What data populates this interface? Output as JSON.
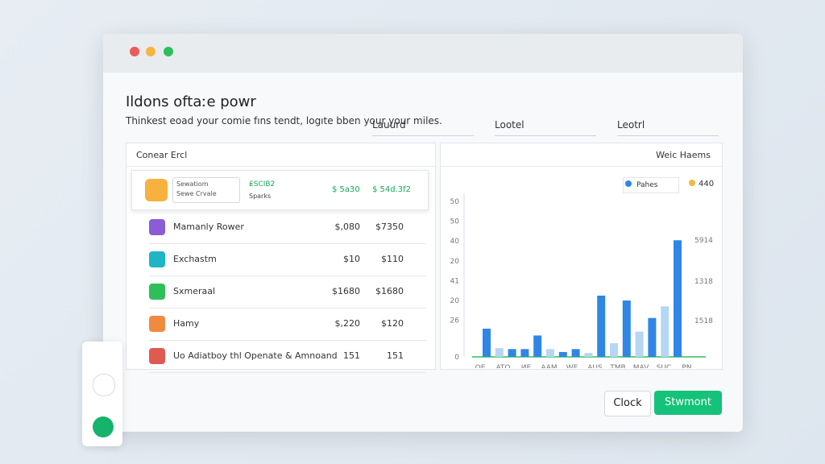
{
  "title": "Ildons oftaːe powr",
  "subtitle": "Thinkest eoad your comie fıns tendt, logıte bben your your miles.",
  "dropdowns": [
    "Lauurd",
    "Lootel",
    "Leotrl"
  ],
  "left_panel": {
    "header": "Conear Ercl",
    "selected": {
      "line1": "Sewatiom",
      "line2": "Sewe Crvale",
      "tag": "₤SCIB2",
      "tag_sub": "Sparks",
      "amount1": "$ 5a30",
      "amount2": "$ 54d.3f2"
    },
    "rows": [
      [
        "Mamanly Rower",
        "$,080",
        "$7350"
      ],
      [
        "Exchastm",
        "$10",
        "$110"
      ],
      [
        "Sxmeraal",
        "$1680",
        "$1680"
      ],
      [
        "Hamy",
        "$,220",
        "$120"
      ],
      [
        "Uo Adiatboy thl Openate & Amnoand",
        "151",
        "151"
      ]
    ]
  },
  "chart": {
    "title": "Weic Haems",
    "legend": [
      "Pahes",
      "440"
    ],
    "y_labels": [
      "50",
      "50",
      "40",
      "20",
      "41",
      "20",
      "26",
      "0"
    ],
    "right_labels": [
      "5914",
      "1318",
      "1518"
    ],
    "x_labels": [
      "OE",
      "ATO",
      "ИE",
      "AAM",
      "WE",
      "AUS",
      "TMB",
      "MAV",
      "SUC",
      "PN"
    ],
    "ylim": [
      0,
      8
    ],
    "values": [
      1.45,
      0.45,
      0.4,
      0.4,
      1.1,
      0.4,
      0.25,
      0.4,
      0.2,
      3.15,
      0.7,
      2.9,
      1.3,
      2.0,
      2.6,
      6.0
    ],
    "colors": [
      "#2f86e6",
      "#b5d6f5",
      "#2f86e6",
      "#2f86e6",
      "#2f86e6",
      "#b5d6f5",
      "#2f86e6",
      "#2f86e6",
      "#b5d6f5",
      "#2f86e6",
      "#b5d6f5",
      "#2f86e6",
      "#b5d6f5",
      "#2f86e6",
      "#b5d6f5",
      "#2f86e6"
    ]
  },
  "buttons": [
    "Clock",
    "Stwmont"
  ]
}
